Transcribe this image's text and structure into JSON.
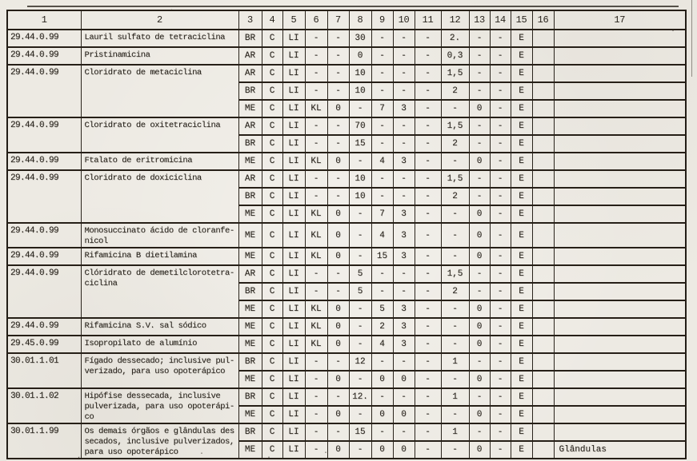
{
  "document": {
    "kind": "scanned typewritten tariff classification table",
    "ink_color": "#2a251e",
    "paper_color": "#edeae3",
    "annotation_last_row": "Glândulas"
  },
  "table": {
    "column_headers": [
      "1",
      "2",
      "3",
      "4",
      "5",
      "6",
      "7",
      "8",
      "9",
      "10",
      "11",
      "12",
      "13",
      "14",
      "15",
      "16",
      "17"
    ],
    "groups": [
      {
        "code": "29.44.0.99",
        "description": "Lauril sulfato de tetraciclina",
        "rows": [
          [
            "BR",
            "C",
            "LI",
            "-",
            "-",
            "30",
            "-",
            "-",
            "-",
            "2.",
            "-",
            "-",
            "E",
            "",
            ""
          ]
        ]
      },
      {
        "code": "29.44.0.99",
        "description": "Pristinamicina",
        "rows": [
          [
            "AR",
            "C",
            "LI",
            "-",
            "-",
            "0",
            "-",
            "-",
            "-",
            "0,3",
            "-",
            "-",
            "E",
            "",
            ""
          ]
        ]
      },
      {
        "code": "29.44.0.99",
        "description": "Cloridrato de metaciclina",
        "rows": [
          [
            "AR",
            "C",
            "LI",
            "-",
            "-",
            "10",
            "-",
            "-",
            "-",
            "1,5",
            "-",
            "-",
            "E",
            "",
            ""
          ],
          [
            "BR",
            "C",
            "LI",
            "-",
            "-",
            "10",
            "-",
            "-",
            "-",
            "2",
            "-",
            "-",
            "E",
            "",
            ""
          ],
          [
            "ME",
            "C",
            "LI",
            "KL",
            "0",
            "-",
            "7",
            "3",
            "-",
            "-",
            "0",
            "-",
            "E",
            "",
            ""
          ]
        ]
      },
      {
        "code": "29.44.0.99",
        "description": "Cloridrato de oxitetraciclina",
        "rows": [
          [
            "AR",
            "C",
            "LI",
            "-",
            "-",
            "70",
            "-",
            "-",
            "-",
            "1,5",
            "-",
            "-",
            "E",
            "",
            ""
          ],
          [
            "BR",
            "C",
            "LI",
            "-",
            "-",
            "15",
            "-",
            "-",
            "-",
            "2",
            "-",
            "-",
            "E",
            "",
            ""
          ]
        ]
      },
      {
        "code": "29.44.0.99",
        "description": "Ftalato de eritromicina",
        "rows": [
          [
            "ME",
            "C",
            "LI",
            "KL",
            "0",
            "-",
            "4",
            "3",
            "-",
            "-",
            "0",
            "-",
            "E",
            "",
            ""
          ]
        ]
      },
      {
        "code": "29.44.0.99",
        "description": "Cloridrato de doxiciclina",
        "rows": [
          [
            "AR",
            "C",
            "LI",
            "-",
            "-",
            "10",
            "-",
            "-",
            "-",
            "1,5",
            "-",
            "-",
            "E",
            "",
            ""
          ],
          [
            "BR",
            "C",
            "LI",
            "-",
            "-",
            "10",
            "-",
            "-",
            "-",
            "2",
            "-",
            "-",
            "E",
            "",
            ""
          ],
          [
            "ME",
            "C",
            "LI",
            "KL",
            "0",
            "-",
            "7",
            "3",
            "-",
            "-",
            "0",
            "-",
            "E",
            "",
            ""
          ]
        ]
      },
      {
        "code": "29.44.0.99",
        "description": "Monosuccinato ácido de cloranfe-\nnicol",
        "rows": [
          [
            "ME",
            "C",
            "LI",
            "KL",
            "0",
            "-",
            "4",
            "3",
            "-",
            "-",
            "0",
            "-",
            "E",
            "",
            ""
          ]
        ]
      },
      {
        "code": "29.44.0.99",
        "description": "Rifamicina B dietilamina",
        "rows": [
          [
            "ME",
            "C",
            "LI",
            "KL",
            "0",
            "-",
            "15",
            "3",
            "-",
            "-",
            "0",
            "-",
            "E",
            "",
            ""
          ]
        ]
      },
      {
        "code": "29.44.0.99",
        "description": "Clóridrato de demetilclorotetra-\nciclina",
        "rows": [
          [
            "AR",
            "C",
            "LI",
            "-",
            "-",
            "5",
            "-",
            "-",
            "-",
            "1,5",
            "-",
            "-",
            "E",
            "",
            ""
          ],
          [
            "BR",
            "C",
            "LI",
            "-",
            "-",
            "5",
            "-",
            "-",
            "-",
            "2",
            "-",
            "-",
            "E",
            "",
            ""
          ],
          [
            "ME",
            "C",
            "LI",
            "KL",
            "0",
            "-",
            "5",
            "3",
            "-",
            "-",
            "0",
            "-",
            "E",
            "",
            ""
          ]
        ]
      },
      {
        "code": "29.44.0.99",
        "description": "Rifamicina S.V. sal sódico",
        "rows": [
          [
            "ME",
            "C",
            "LI",
            "KL",
            "0",
            "-",
            "2",
            "3",
            "-",
            "-",
            "0",
            "-",
            "E",
            "",
            ""
          ]
        ]
      },
      {
        "code": "29.45.0.99",
        "description": "Isopropilato de alumínio",
        "rows": [
          [
            "ME",
            "C",
            "LI",
            "KL",
            "0",
            "-",
            "4",
            "3",
            "-",
            "-",
            "0",
            "-",
            "E",
            "",
            ""
          ]
        ]
      },
      {
        "code": "30.01.1.01",
        "description": "Fígado dessecado; inclusive pul-\nverizado, para uso opoterápico",
        "rows": [
          [
            "BR",
            "C",
            "LI",
            "-",
            "-",
            "12",
            "-",
            "-",
            "-",
            "1",
            "-",
            "-",
            "E",
            "",
            ""
          ],
          [
            "ME",
            "C",
            "LI",
            "-",
            "0",
            "-",
            "0",
            "0",
            "-",
            "-",
            "0",
            "-",
            "E",
            "",
            ""
          ]
        ]
      },
      {
        "code": "30.01.1.02",
        "description": "Hipófise dessecada, inclusive\npulverizada, para uso opoterápi-\nco",
        "rows": [
          [
            "BR",
            "C",
            "LI",
            "-",
            "-",
            "12.",
            "-",
            "-",
            "-",
            "1",
            "-",
            "-",
            "E",
            "",
            ""
          ],
          [
            "ME",
            "C",
            "LI",
            "-",
            "0",
            "-",
            "0",
            "0",
            "-",
            "-",
            "0",
            "-",
            "E",
            "",
            ""
          ]
        ]
      },
      {
        "code": "30.01.1.99",
        "description": "Os demais órgãos e glândulas des\nsecados, inclusive pulverizados,\npara uso opoterápico",
        "rows": [
          [
            "BR",
            "C",
            "LI",
            "-",
            "-",
            "15",
            "-",
            "-",
            "-",
            "1",
            "-",
            "-",
            "E",
            "",
            ""
          ],
          [
            "ME",
            "C",
            "LI",
            "-",
            "0",
            "-",
            "0",
            "0",
            "-",
            "-",
            "0",
            "-",
            "E",
            "",
            "Glândulas"
          ]
        ]
      }
    ]
  }
}
